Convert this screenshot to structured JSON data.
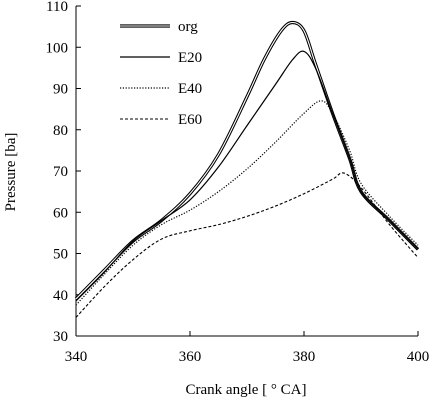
{
  "chart_data": {
    "type": "line",
    "title": "",
    "xlabel": "Crank angle [ ° CA]",
    "ylabel": "Pressure [ba]",
    "xlim": [
      340,
      400
    ],
    "ylim": [
      30,
      110
    ],
    "xticks": [
      340,
      360,
      380,
      400
    ],
    "yticks": [
      30,
      40,
      50,
      60,
      70,
      80,
      90,
      100,
      110
    ],
    "grid": false,
    "legend_position": "top-left",
    "series": [
      {
        "name": "org",
        "style": "double-solid",
        "color": "#000000",
        "x": [
          340,
          345,
          350,
          355,
          360,
          365,
          370,
          373,
          376,
          378,
          380,
          382,
          385,
          388,
          390,
          395,
          400
        ],
        "y": [
          39,
          46,
          53,
          58,
          64.5,
          74,
          88,
          97,
          104,
          106,
          104,
          96,
          84,
          73,
          65,
          58,
          51
        ]
      },
      {
        "name": "E20",
        "style": "solid",
        "color": "#000000",
        "x": [
          340,
          345,
          350,
          355,
          360,
          365,
          370,
          375,
          378,
          380,
          382,
          385,
          388,
          390,
          395,
          400
        ],
        "y": [
          38.5,
          45.5,
          53,
          58,
          63,
          71,
          81,
          91,
          97,
          99,
          95,
          84,
          73,
          65,
          58,
          51
        ]
      },
      {
        "name": "E40",
        "style": "dotted",
        "color": "#000000",
        "x": [
          340,
          345,
          350,
          355,
          360,
          365,
          370,
          375,
          380,
          383,
          385,
          388,
          390,
          395,
          400
        ],
        "y": [
          37.5,
          45,
          52,
          57,
          60.5,
          65,
          70.5,
          77,
          84,
          87,
          84,
          75,
          67,
          59,
          52
        ]
      },
      {
        "name": "E60",
        "style": "dashed",
        "color": "#000000",
        "x": [
          340,
          345,
          350,
          355,
          360,
          365,
          370,
          375,
          380,
          385,
          387,
          390,
          395,
          400
        ],
        "y": [
          34.5,
          42,
          48.5,
          53.5,
          55.5,
          57,
          59,
          61.5,
          64.5,
          68,
          69.5,
          66,
          57,
          49
        ]
      }
    ]
  }
}
